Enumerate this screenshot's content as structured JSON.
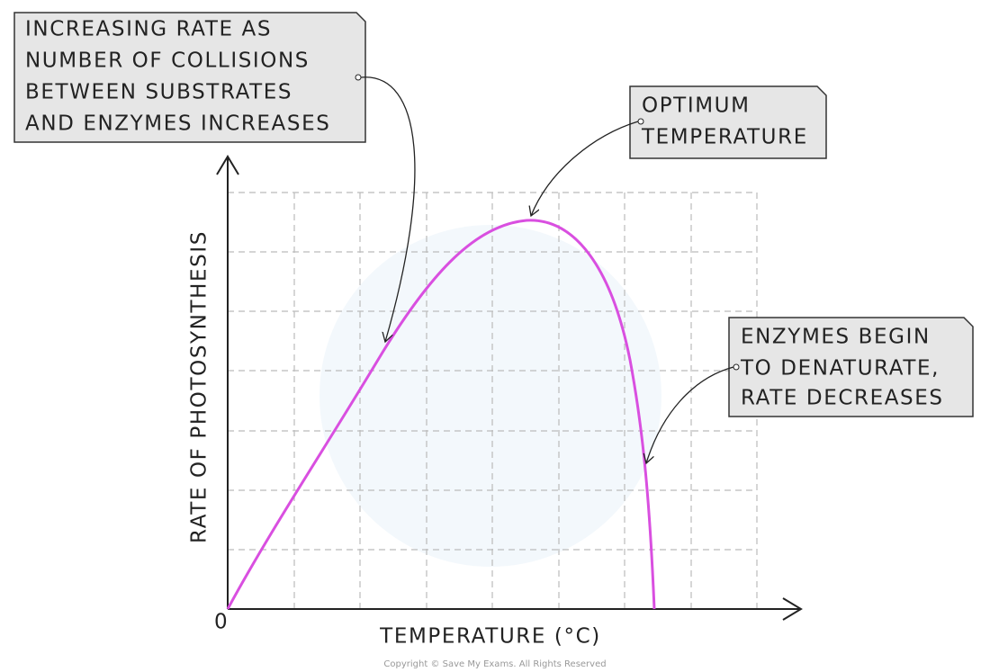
{
  "annotations": [
    {
      "lines": [
        "INCREASING RATE AS",
        "NUMBER OF COLLISIONS",
        "BETWEEN SUBSTRATES",
        "AND ENZYMES INCREASES"
      ]
    },
    {
      "lines": [
        "OPTIMUM",
        "TEMPERATURE"
      ]
    },
    {
      "lines": [
        "ENZYMES BEGIN",
        "TO DENATURATE,",
        "RATE DECREASES"
      ]
    }
  ],
  "axes": {
    "y_label": "RATE OF PHOTOSYNTHESIS",
    "x_label": "TEMPERATURE (°C)",
    "origin": "0"
  },
  "footer": "Copyright © Save My Exams. All Rights Reserved"
}
